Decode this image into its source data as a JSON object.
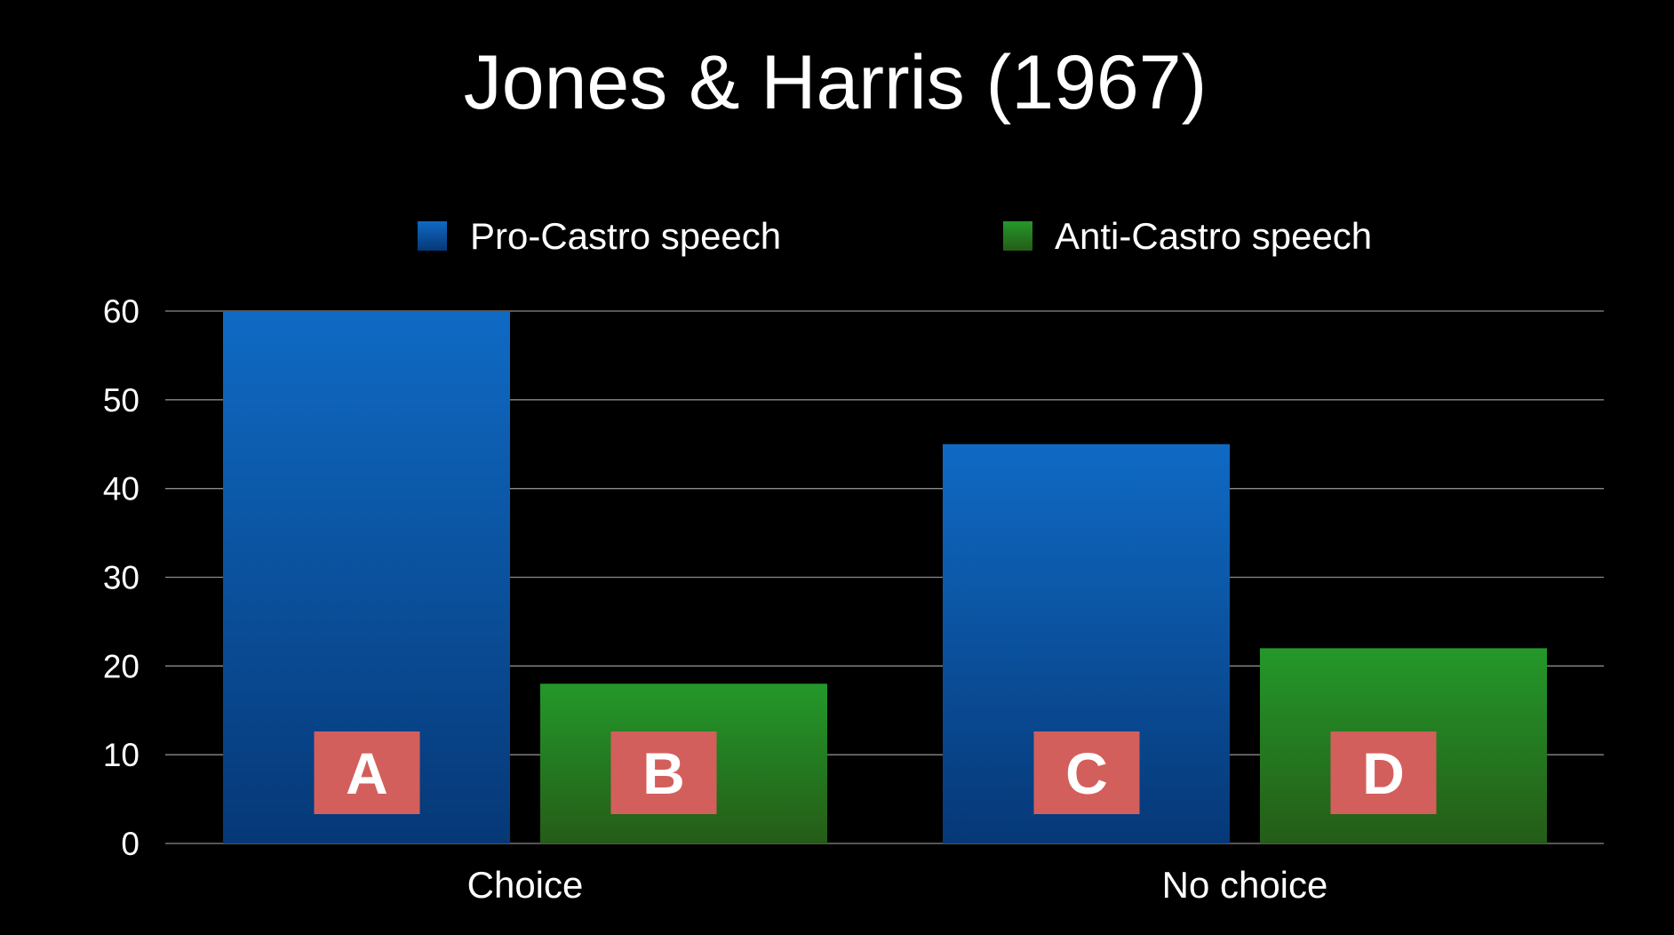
{
  "chart_data": {
    "type": "bar",
    "title": "Jones & Harris (1967)",
    "xlabel": "",
    "ylabel": "",
    "categories": [
      "Choice",
      "No choice"
    ],
    "series": [
      {
        "name": "Pro-Castro speech",
        "values": [
          60,
          45
        ],
        "color": "#0f6ac4",
        "color_dark": "#063877",
        "box_labels": [
          "A",
          "C"
        ]
      },
      {
        "name": "Anti-Castro speech",
        "values": [
          18,
          22
        ],
        "color": "#24982a",
        "color_dark": "#255c17",
        "box_labels": [
          "B",
          "D"
        ]
      }
    ],
    "ylim": [
      0,
      60
    ],
    "yticks": [
      "0",
      "10",
      "20",
      "30",
      "40",
      "50",
      "60"
    ],
    "grid": true,
    "legend": "top-center",
    "label_box_color": "#d35f5c",
    "background": "#000000"
  }
}
